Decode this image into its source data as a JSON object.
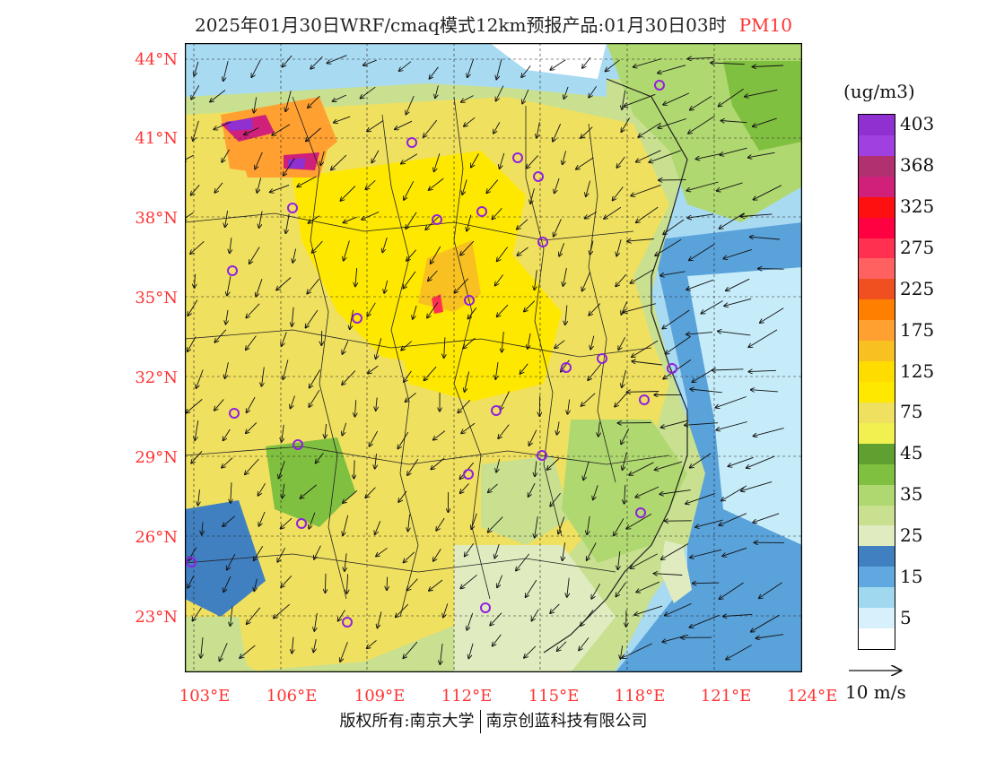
{
  "title": {
    "main": "2025年01月30日WRF/cmaq模式12km预报产品:01月30日03时",
    "species": "PM10"
  },
  "colors": {
    "title_species": "#ff3333",
    "axis_labels": "#ff3333",
    "boundary_lines": "#222222",
    "city_markers": "#9020e0"
  },
  "map": {
    "latitude_labels": [
      "44°N",
      "41°N",
      "38°N",
      "35°N",
      "32°N",
      "29°N",
      "26°N",
      "23°N"
    ],
    "longitude_labels": [
      "103°E",
      "106°E",
      "109°E",
      "112°E",
      "115°E",
      "118°E",
      "121°E",
      "124°E"
    ],
    "gridlines": "dashed"
  },
  "legend": {
    "unit": "(ug/m3)",
    "levels": [
      {
        "label": "403",
        "color": "#9030d0"
      },
      {
        "label": "",
        "color": "#a040e0"
      },
      {
        "label": "368",
        "color": "#b03070"
      },
      {
        "label": "",
        "color": "#d0207a"
      },
      {
        "label": "325",
        "color": "#ff1010"
      },
      {
        "label": "",
        "color": "#ff0040"
      },
      {
        "label": "275",
        "color": "#ff3050"
      },
      {
        "label": "",
        "color": "#ff6060"
      },
      {
        "label": "225",
        "color": "#f05020"
      },
      {
        "label": "",
        "color": "#ff8000"
      },
      {
        "label": "175",
        "color": "#ffa030"
      },
      {
        "label": "",
        "color": "#f8c020"
      },
      {
        "label": "125",
        "color": "#ffdc00"
      },
      {
        "label": "",
        "color": "#ffe800"
      },
      {
        "label": "75",
        "color": "#f0e060"
      },
      {
        "label": "",
        "color": "#f0f050"
      },
      {
        "label": "45",
        "color": "#60a030"
      },
      {
        "label": "",
        "color": "#80c040"
      },
      {
        "label": "35",
        "color": "#b0d870"
      },
      {
        "label": "",
        "color": "#c8e090"
      },
      {
        "label": "25",
        "color": "#e0ecc0"
      },
      {
        "label": "",
        "color": "#4080c0"
      },
      {
        "label": "15",
        "color": "#60a8e0"
      },
      {
        "label": "",
        "color": "#a0d8f0"
      },
      {
        "label": "5",
        "color": "#d8f0fc"
      },
      {
        "label": "",
        "color": "#ffffff"
      }
    ]
  },
  "wind_key": {
    "label": "10 m/s"
  },
  "footer": {
    "copyright_left": "版权所有:南京大学",
    "copyright_right": "南京创蓝科技有限公司"
  }
}
